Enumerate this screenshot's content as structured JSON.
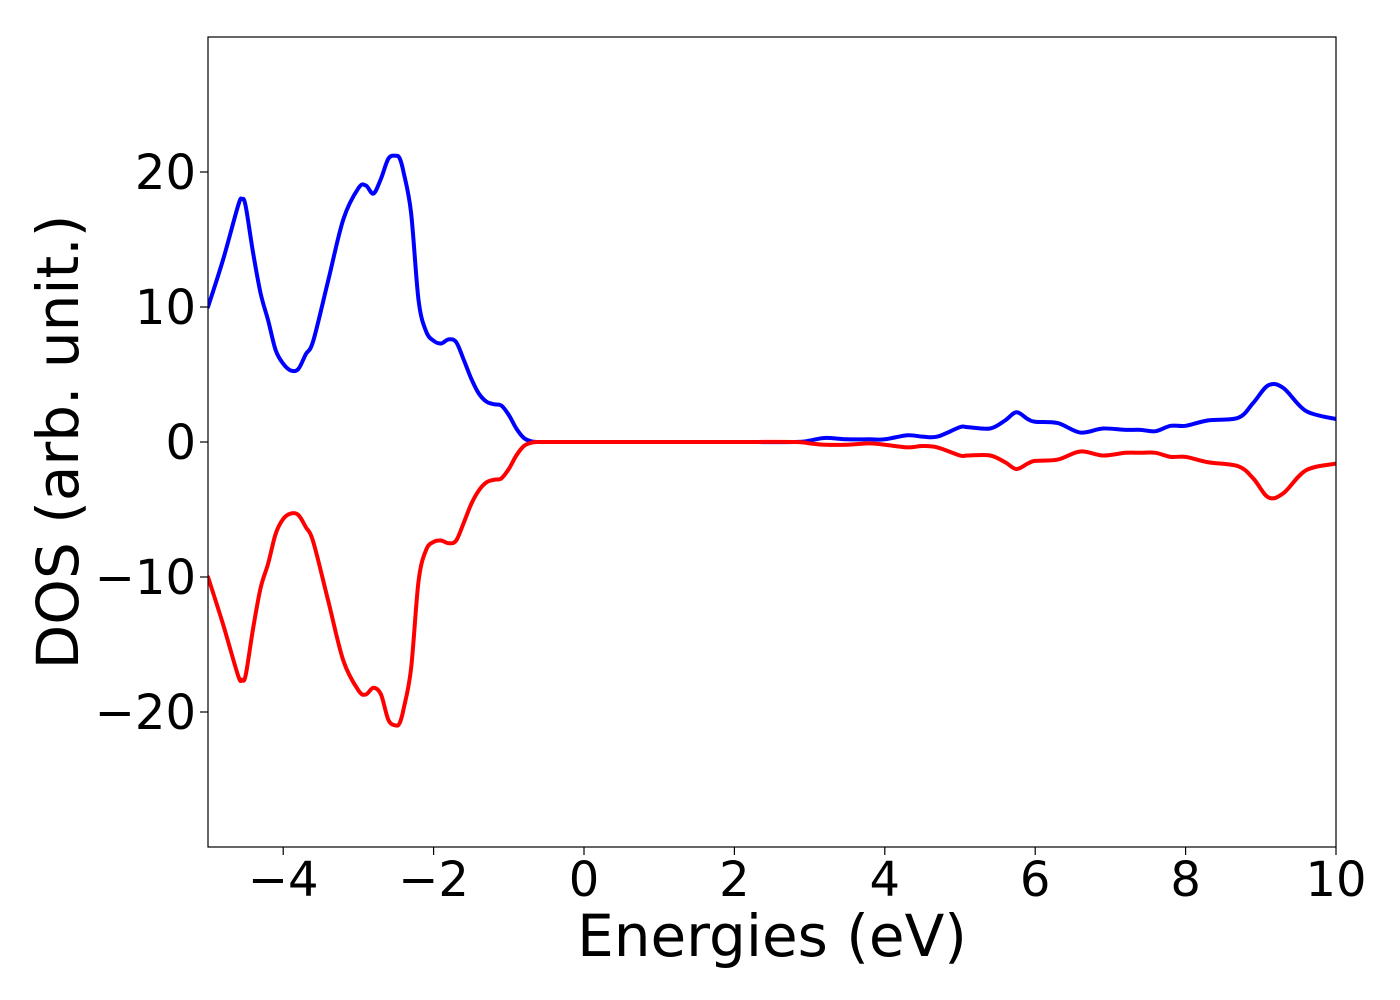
{
  "chart_data": {
    "type": "line",
    "title": "",
    "xlabel": "Energies (eV)",
    "ylabel": "DOS (arb. unit.)",
    "xlim": [
      -5,
      10
    ],
    "ylim": [
      -30,
      30
    ],
    "xticks": [
      -4,
      -2,
      0,
      2,
      4,
      6,
      8,
      10
    ],
    "yticks": [
      -20,
      -10,
      0,
      10,
      20
    ],
    "xtick_labels": [
      "−4",
      "−2",
      "0",
      "2",
      "4",
      "6",
      "8",
      "10"
    ],
    "ytick_labels": [
      "−20",
      "−10",
      "0",
      "10",
      "20"
    ],
    "grid": false,
    "legend": false,
    "series": [
      {
        "color": "#0000ff",
        "x": [
          -5.0,
          -4.8,
          -4.6,
          -4.55,
          -4.5,
          -4.4,
          -4.3,
          -4.2,
          -4.1,
          -4.0,
          -3.9,
          -3.8,
          -3.7,
          -3.6,
          -3.4,
          -3.2,
          -3.0,
          -2.9,
          -2.8,
          -2.7,
          -2.6,
          -2.5,
          -2.45,
          -2.4,
          -2.3,
          -2.2,
          -2.1,
          -2.0,
          -1.9,
          -1.8,
          -1.7,
          -1.6,
          -1.5,
          -1.4,
          -1.3,
          -1.2,
          -1.1,
          -1.0,
          -0.9,
          -0.8,
          -0.7,
          -0.6,
          -0.5,
          0.0,
          1.0,
          2.0,
          2.8,
          3.0,
          3.2,
          3.5,
          3.8,
          4.0,
          4.3,
          4.5,
          4.7,
          5.0,
          5.1,
          5.4,
          5.6,
          5.75,
          5.9,
          6.0,
          6.3,
          6.6,
          6.9,
          7.2,
          7.4,
          7.6,
          7.8,
          8.0,
          8.3,
          8.7,
          8.9,
          9.1,
          9.3,
          9.6,
          10.0
        ],
        "y": [
          10,
          13.5,
          17.5,
          18,
          17.5,
          14,
          11,
          9,
          6.8,
          5.8,
          5.3,
          5.4,
          6.5,
          7.5,
          12,
          16.5,
          18.8,
          19,
          18.4,
          19.5,
          21,
          21.2,
          21,
          20,
          17,
          10.5,
          8.2,
          7.5,
          7.3,
          7.6,
          7.4,
          6.1,
          4.7,
          3.6,
          3.0,
          2.8,
          2.7,
          2.0,
          1.0,
          0.3,
          0.05,
          0.0,
          0.0,
          0.0,
          0.0,
          0.0,
          0.0,
          0.1,
          0.3,
          0.2,
          0.2,
          0.2,
          0.5,
          0.4,
          0.4,
          1.1,
          1.1,
          1.0,
          1.6,
          2.2,
          1.7,
          1.5,
          1.4,
          0.7,
          1.0,
          0.9,
          0.9,
          0.8,
          1.2,
          1.2,
          1.6,
          1.8,
          2.9,
          4.2,
          4.0,
          2.3,
          1.7
        ]
      },
      {
        "color": "#ff0000",
        "x": [
          -5.0,
          -4.8,
          -4.6,
          -4.55,
          -4.5,
          -4.4,
          -4.3,
          -4.2,
          -4.1,
          -4.0,
          -3.9,
          -3.8,
          -3.7,
          -3.6,
          -3.4,
          -3.2,
          -3.0,
          -2.9,
          -2.8,
          -2.7,
          -2.6,
          -2.5,
          -2.45,
          -2.4,
          -2.3,
          -2.2,
          -2.1,
          -2.0,
          -1.9,
          -1.8,
          -1.7,
          -1.6,
          -1.5,
          -1.4,
          -1.3,
          -1.2,
          -1.1,
          -1.0,
          -0.9,
          -0.8,
          -0.7,
          -0.6,
          -0.5,
          0.0,
          1.0,
          2.0,
          2.8,
          3.0,
          3.2,
          3.5,
          3.8,
          4.0,
          4.3,
          4.5,
          4.7,
          5.0,
          5.1,
          5.4,
          5.6,
          5.75,
          5.9,
          6.0,
          6.3,
          6.6,
          6.9,
          7.2,
          7.4,
          7.6,
          7.8,
          8.0,
          8.3,
          8.7,
          8.9,
          9.1,
          9.3,
          9.6,
          10.0
        ],
        "y": [
          -10,
          -13.5,
          -17.3,
          -17.6,
          -17.3,
          -13.8,
          -10.8,
          -9.0,
          -6.8,
          -5.7,
          -5.3,
          -5.4,
          -6.3,
          -7.4,
          -11.8,
          -16.2,
          -18.4,
          -18.7,
          -18.2,
          -18.7,
          -20.6,
          -21.0,
          -20.8,
          -19.8,
          -16.8,
          -10.3,
          -8.0,
          -7.4,
          -7.3,
          -7.5,
          -7.3,
          -6.0,
          -4.6,
          -3.6,
          -3.0,
          -2.8,
          -2.7,
          -2.0,
          -1.0,
          -0.3,
          -0.05,
          0.0,
          0.0,
          0.0,
          0.0,
          0.0,
          0.0,
          -0.1,
          -0.2,
          -0.2,
          -0.1,
          -0.2,
          -0.4,
          -0.3,
          -0.4,
          -1.0,
          -1.0,
          -1.0,
          -1.5,
          -2.0,
          -1.6,
          -1.4,
          -1.3,
          -0.7,
          -1.0,
          -0.8,
          -0.8,
          -0.8,
          -1.1,
          -1.1,
          -1.5,
          -1.8,
          -2.7,
          -4.1,
          -3.8,
          -2.1,
          -1.6
        ]
      }
    ]
  }
}
